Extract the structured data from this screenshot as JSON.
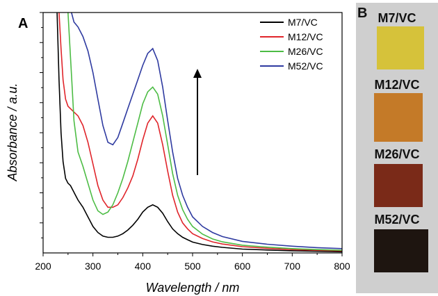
{
  "chart_data": {
    "type": "line",
    "panel_label": "A",
    "xlabel": "Wavelength / nm",
    "ylabel": "Absorbance / a.u.",
    "xlim": [
      200,
      800
    ],
    "ylim": [
      0,
      1.0
    ],
    "x_ticks": [
      200,
      300,
      400,
      500,
      600,
      700,
      800
    ],
    "y_tick_labels_shown": false,
    "grid": false,
    "legend_position": "top-right",
    "annotation": "upward arrow near 510 nm indicating increasing absorbance",
    "series": [
      {
        "name": "M7/VC",
        "color": "#000000",
        "x": [
          228,
          232,
          236,
          240,
          245,
          250,
          255,
          260,
          265,
          270,
          280,
          290,
          300,
          310,
          320,
          330,
          340,
          350,
          360,
          370,
          380,
          390,
          400,
          410,
          420,
          430,
          440,
          450,
          460,
          470,
          480,
          490,
          500,
          520,
          540,
          560,
          600,
          650,
          700,
          750,
          800
        ],
        "y": [
          1.0,
          0.72,
          0.5,
          0.38,
          0.31,
          0.29,
          0.28,
          0.26,
          0.24,
          0.22,
          0.19,
          0.15,
          0.11,
          0.085,
          0.07,
          0.065,
          0.065,
          0.07,
          0.08,
          0.095,
          0.115,
          0.14,
          0.17,
          0.19,
          0.2,
          0.19,
          0.165,
          0.13,
          0.1,
          0.08,
          0.065,
          0.055,
          0.045,
          0.035,
          0.028,
          0.023,
          0.016,
          0.012,
          0.009,
          0.007,
          0.005
        ]
      },
      {
        "name": "M12/VC",
        "color": "#e0242a",
        "x": [
          232,
          236,
          240,
          245,
          250,
          260,
          270,
          280,
          290,
          300,
          310,
          320,
          330,
          340,
          350,
          360,
          370,
          380,
          390,
          400,
          410,
          420,
          430,
          440,
          450,
          460,
          470,
          480,
          490,
          500,
          520,
          540,
          560,
          600,
          650,
          700,
          750,
          800
        ],
        "y": [
          1.0,
          0.85,
          0.72,
          0.64,
          0.61,
          0.59,
          0.57,
          0.53,
          0.46,
          0.37,
          0.28,
          0.22,
          0.19,
          0.19,
          0.2,
          0.23,
          0.27,
          0.32,
          0.39,
          0.47,
          0.54,
          0.57,
          0.54,
          0.45,
          0.34,
          0.24,
          0.17,
          0.125,
          0.1,
          0.08,
          0.06,
          0.046,
          0.037,
          0.026,
          0.019,
          0.014,
          0.011,
          0.009
        ]
      },
      {
        "name": "M26/VC",
        "color": "#4cbc44",
        "x": [
          250,
          254,
          258,
          262,
          270,
          280,
          290,
          300,
          310,
          320,
          330,
          340,
          350,
          360,
          370,
          380,
          390,
          400,
          410,
          420,
          430,
          440,
          450,
          460,
          470,
          480,
          490,
          500,
          520,
          540,
          560,
          600,
          650,
          700,
          750,
          800
        ],
        "y": [
          1.0,
          0.85,
          0.7,
          0.55,
          0.42,
          0.36,
          0.29,
          0.22,
          0.175,
          0.16,
          0.17,
          0.2,
          0.25,
          0.31,
          0.38,
          0.46,
          0.54,
          0.62,
          0.67,
          0.69,
          0.66,
          0.57,
          0.45,
          0.33,
          0.24,
          0.18,
          0.14,
          0.11,
          0.078,
          0.058,
          0.046,
          0.032,
          0.024,
          0.018,
          0.014,
          0.011
        ]
      },
      {
        "name": "M52/VC",
        "color": "#2e3aa0",
        "x": [
          257,
          262,
          266,
          270,
          280,
          290,
          300,
          310,
          320,
          330,
          340,
          350,
          360,
          370,
          380,
          390,
          400,
          410,
          420,
          430,
          440,
          450,
          460,
          470,
          480,
          490,
          500,
          520,
          540,
          560,
          600,
          650,
          700,
          750,
          800
        ],
        "y": [
          1.0,
          0.96,
          0.95,
          0.94,
          0.9,
          0.84,
          0.75,
          0.64,
          0.53,
          0.46,
          0.45,
          0.48,
          0.54,
          0.6,
          0.66,
          0.72,
          0.78,
          0.83,
          0.85,
          0.8,
          0.69,
          0.55,
          0.42,
          0.31,
          0.24,
          0.19,
          0.15,
          0.11,
          0.085,
          0.068,
          0.048,
          0.036,
          0.028,
          0.022,
          0.018
        ]
      }
    ]
  },
  "photos": {
    "panel_label": "B",
    "samples": [
      {
        "label": "M7/VC",
        "color": "#d6c23a"
      },
      {
        "label": "M12/VC",
        "color": "#c47a28"
      },
      {
        "label": "M26/VC",
        "color": "#7a2a18"
      },
      {
        "label": "M52/VC",
        "color": "#1e1510"
      }
    ]
  }
}
